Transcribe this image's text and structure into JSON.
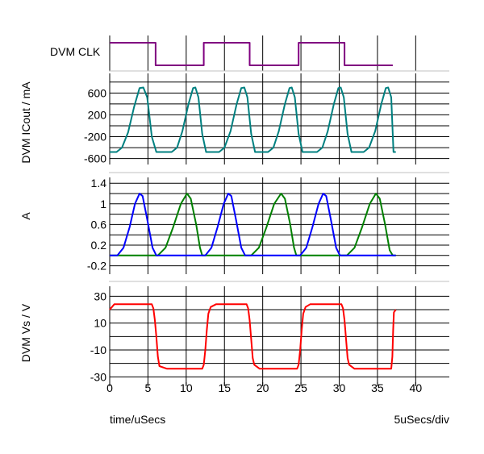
{
  "chart_data": [
    {
      "type": "line",
      "ylabel": "DVM CLK",
      "x_range": [
        0,
        44.5
      ],
      "series": [
        {
          "color": "#800080",
          "points": [
            [
              0,
              1
            ],
            [
              6,
              1
            ],
            [
              6,
              0
            ],
            [
              12.3,
              0
            ],
            [
              12.3,
              1
            ],
            [
              18.3,
              1
            ],
            [
              18.3,
              0
            ],
            [
              24.7,
              0
            ],
            [
              24.7,
              1
            ],
            [
              30.7,
              1
            ],
            [
              30.7,
              0
            ],
            [
              37,
              0
            ]
          ]
        }
      ]
    },
    {
      "type": "line",
      "ylabel": "DVM ICout / mA",
      "ylim": [
        -650,
        900
      ],
      "yticks": [
        "600",
        "200",
        "-200",
        "-600"
      ],
      "ytick_values": [
        600,
        200,
        -200,
        -600
      ],
      "series": [
        {
          "color": "#008080",
          "points": [
            [
              0,
              -480
            ],
            [
              0.9,
              -480
            ],
            [
              1.6,
              -400
            ],
            [
              2.4,
              -120
            ],
            [
              3.2,
              350
            ],
            [
              3.9,
              690
            ],
            [
              4.4,
              700
            ],
            [
              4.9,
              520
            ],
            [
              5.5,
              -200
            ],
            [
              6.1,
              -480
            ],
            [
              8.1,
              -480
            ],
            [
              8.8,
              -400
            ],
            [
              9.5,
              -100
            ],
            [
              10.3,
              400
            ],
            [
              10.9,
              690
            ],
            [
              11.2,
              700
            ],
            [
              11.6,
              520
            ],
            [
              12.1,
              -150
            ],
            [
              12.6,
              -480
            ],
            [
              14.3,
              -480
            ],
            [
              15.0,
              -400
            ],
            [
              15.8,
              -100
            ],
            [
              16.6,
              400
            ],
            [
              17.2,
              690
            ],
            [
              17.6,
              700
            ],
            [
              18.0,
              520
            ],
            [
              18.5,
              -150
            ],
            [
              19.0,
              -480
            ],
            [
              20.7,
              -480
            ],
            [
              21.4,
              -400
            ],
            [
              22.1,
              -100
            ],
            [
              22.9,
              400
            ],
            [
              23.5,
              690
            ],
            [
              23.8,
              700
            ],
            [
              24.2,
              520
            ],
            [
              24.7,
              -150
            ],
            [
              25.2,
              -480
            ],
            [
              27.1,
              -480
            ],
            [
              27.8,
              -400
            ],
            [
              28.5,
              -100
            ],
            [
              29.3,
              400
            ],
            [
              29.9,
              690
            ],
            [
              30.2,
              700
            ],
            [
              30.6,
              520
            ],
            [
              31.1,
              -150
            ],
            [
              31.6,
              -480
            ],
            [
              33.2,
              -480
            ],
            [
              33.9,
              -400
            ],
            [
              34.7,
              -100
            ],
            [
              35.5,
              400
            ],
            [
              36.1,
              690
            ],
            [
              36.4,
              700
            ],
            [
              36.8,
              520
            ],
            [
              37.1,
              -480
            ],
            [
              37.4,
              -480
            ]
          ]
        }
      ]
    },
    {
      "type": "line",
      "ylabel": "A",
      "ylim": [
        -0.3,
        1.45
      ],
      "yticks": [
        "1.4",
        "1",
        "0.6",
        "0.2",
        "-0.2"
      ],
      "ytick_values": [
        1.4,
        1.0,
        0.6,
        0.2,
        -0.2
      ],
      "series": [
        {
          "color": "#008000",
          "points": [
            [
              0,
              0
            ],
            [
              6.3,
              0
            ],
            [
              7.3,
              0.15
            ],
            [
              8.3,
              0.55
            ],
            [
              9.3,
              1.0
            ],
            [
              10.1,
              1.2
            ],
            [
              10.6,
              1.1
            ],
            [
              11.3,
              0.6
            ],
            [
              11.8,
              0.15
            ],
            [
              12.1,
              0
            ],
            [
              18.5,
              0
            ],
            [
              19.5,
              0.15
            ],
            [
              20.5,
              0.55
            ],
            [
              21.5,
              1.0
            ],
            [
              22.4,
              1.2
            ],
            [
              22.9,
              1.1
            ],
            [
              23.6,
              0.6
            ],
            [
              24.1,
              0.15
            ],
            [
              24.4,
              0
            ],
            [
              31.0,
              0
            ],
            [
              32.0,
              0.15
            ],
            [
              33.0,
              0.55
            ],
            [
              34.0,
              1.0
            ],
            [
              34.8,
              1.2
            ],
            [
              35.3,
              1.1
            ],
            [
              36.0,
              0.6
            ],
            [
              36.6,
              0.1
            ],
            [
              37.0,
              0
            ],
            [
              37.4,
              0
            ]
          ]
        },
        {
          "color": "#0000FF",
          "points": [
            [
              0,
              0
            ],
            [
              1.0,
              0
            ],
            [
              1.8,
              0.15
            ],
            [
              2.6,
              0.55
            ],
            [
              3.3,
              1.0
            ],
            [
              3.9,
              1.2
            ],
            [
              4.3,
              1.15
            ],
            [
              4.9,
              0.7
            ],
            [
              5.6,
              0.15
            ],
            [
              6.1,
              0
            ],
            [
              12.5,
              0
            ],
            [
              13.3,
              0.15
            ],
            [
              14.1,
              0.55
            ],
            [
              14.9,
              1.0
            ],
            [
              15.5,
              1.2
            ],
            [
              15.9,
              1.15
            ],
            [
              16.5,
              0.7
            ],
            [
              17.2,
              0.15
            ],
            [
              17.7,
              0
            ],
            [
              24.9,
              0
            ],
            [
              25.7,
              0.15
            ],
            [
              26.5,
              0.55
            ],
            [
              27.3,
              1.0
            ],
            [
              27.9,
              1.2
            ],
            [
              28.3,
              1.15
            ],
            [
              28.9,
              0.7
            ],
            [
              29.6,
              0.15
            ],
            [
              30.1,
              0
            ],
            [
              37.4,
              0
            ]
          ]
        }
      ]
    },
    {
      "type": "line",
      "ylabel": "DVM Vs / V",
      "ylim": [
        -34,
        35
      ],
      "yticks": [
        "30",
        "10",
        "-10",
        "-30"
      ],
      "ytick_values": [
        30,
        10,
        -10,
        -30
      ],
      "series": [
        {
          "color": "#FF0000",
          "points": [
            [
              0,
              20
            ],
            [
              0.3,
              22
            ],
            [
              0.6,
              24
            ],
            [
              5.5,
              24
            ],
            [
              5.7,
              21
            ],
            [
              5.9,
              12
            ],
            [
              6.1,
              0
            ],
            [
              6.3,
              -15
            ],
            [
              6.5,
              -22
            ],
            [
              7.5,
              -24
            ],
            [
              12.1,
              -24
            ],
            [
              12.3,
              -21
            ],
            [
              12.5,
              -10
            ],
            [
              12.7,
              5
            ],
            [
              12.9,
              17
            ],
            [
              13.2,
              22
            ],
            [
              13.9,
              24
            ],
            [
              17.9,
              24
            ],
            [
              18.1,
              21
            ],
            [
              18.3,
              12
            ],
            [
              18.5,
              -2
            ],
            [
              18.7,
              -16
            ],
            [
              18.9,
              -21
            ],
            [
              19.6,
              -24
            ],
            [
              24.5,
              -24
            ],
            [
              24.7,
              -21
            ],
            [
              24.9,
              -10
            ],
            [
              25.1,
              5
            ],
            [
              25.3,
              17
            ],
            [
              25.6,
              22
            ],
            [
              26.2,
              24
            ],
            [
              30.3,
              24
            ],
            [
              30.5,
              21
            ],
            [
              30.7,
              12
            ],
            [
              30.9,
              -2
            ],
            [
              31.1,
              -16
            ],
            [
              31.3,
              -21
            ],
            [
              32.0,
              -24
            ],
            [
              36.8,
              -24
            ],
            [
              36.95,
              -15
            ],
            [
              37.05,
              5
            ],
            [
              37.15,
              18
            ],
            [
              37.4,
              20
            ]
          ]
        }
      ]
    }
  ],
  "x_axis": {
    "ticks": [
      "0",
      "5",
      "10",
      "15",
      "20",
      "25",
      "30",
      "35",
      "40"
    ],
    "tick_values": [
      0,
      5,
      10,
      15,
      20,
      25,
      30,
      35,
      40
    ],
    "label": "time/uSecs",
    "scale_label": "5uSecs/div"
  }
}
